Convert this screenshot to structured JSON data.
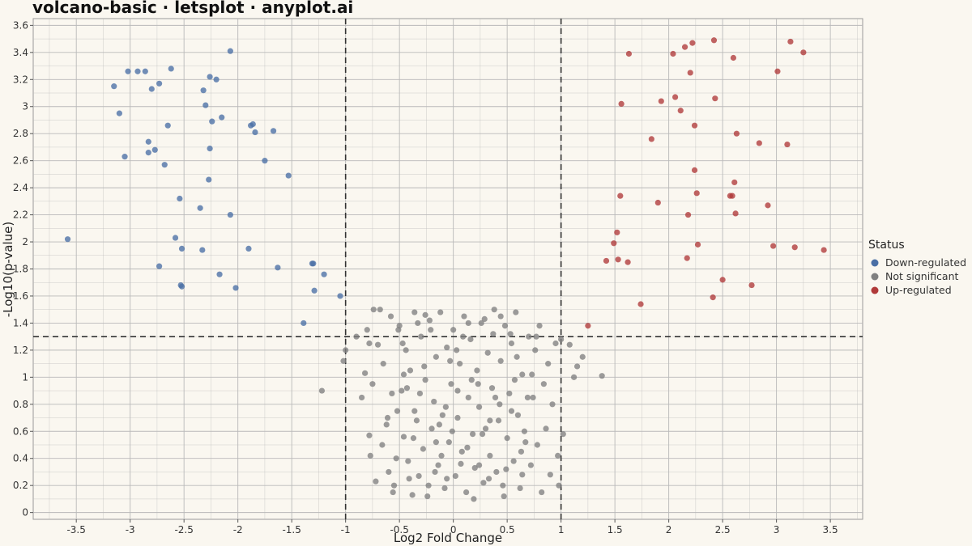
{
  "title": "volcano-basic · letsplot · anyplot.ai",
  "colors": {
    "background": "#faf7f0",
    "down": "#4a6fa5",
    "ns": "#808080",
    "up": "#b03a3a",
    "grid": "#b9b9b9",
    "threshold": "#333333"
  },
  "chart_data": {
    "type": "scatter",
    "title": "volcano-basic · letsplot · anyplot.ai",
    "xlabel": "Log2 Fold Change",
    "ylabel": "-Log10(p-value)",
    "xlim": [
      -3.9,
      3.8
    ],
    "ylim": [
      -0.05,
      3.65
    ],
    "x_ticks": [
      -3.5,
      -3,
      -2.5,
      -2,
      -1.5,
      -1,
      -0.5,
      0,
      0.5,
      1,
      1.5,
      2,
      2.5,
      3,
      3.5
    ],
    "x_tick_labels": [
      "-3.5",
      "-3",
      "-2.5",
      "-2",
      "-1.5",
      "-1",
      "-0.5",
      "0",
      "0.5",
      "1",
      "1.5",
      "2",
      "2.5",
      "3",
      "3.5"
    ],
    "y_ticks": [
      0,
      0.2,
      0.4,
      0.6,
      0.8,
      1,
      1.2,
      1.4,
      1.6,
      1.8,
      2,
      2.2,
      2.4,
      2.6,
      2.8,
      3,
      3.2,
      3.4,
      3.6
    ],
    "y_tick_labels": [
      "0",
      "0.2",
      "0.4",
      "0.6",
      "0.8",
      "1",
      "1.2",
      "1.4",
      "1.6",
      "1.8",
      "2",
      "2.2",
      "2.4",
      "2.6",
      "2.8",
      "3",
      "3.2",
      "3.4",
      "3.6"
    ],
    "grid": true,
    "thresholds": {
      "x": [
        -1,
        1
      ],
      "y": 1.3
    },
    "legend": {
      "title": "Status",
      "position": "right",
      "entries": [
        {
          "label": "Down-regulated",
          "color": "#4a6fa5"
        },
        {
          "label": "Not significant",
          "color": "#808080"
        },
        {
          "label": "Up-regulated",
          "color": "#b03a3a"
        }
      ]
    },
    "series": [
      {
        "name": "Down-regulated",
        "color": "#4a6fa5",
        "points": [
          [
            -3.58,
            2.02
          ],
          [
            -3.15,
            3.15
          ],
          [
            -3.1,
            2.95
          ],
          [
            -3.05,
            2.63
          ],
          [
            -3.02,
            3.26
          ],
          [
            -2.93,
            3.26
          ],
          [
            -2.86,
            3.26
          ],
          [
            -2.83,
            2.74
          ],
          [
            -2.83,
            2.66
          ],
          [
            -2.8,
            3.13
          ],
          [
            -2.77,
            2.68
          ],
          [
            -2.73,
            3.17
          ],
          [
            -2.73,
            1.82
          ],
          [
            -2.68,
            2.57
          ],
          [
            -2.65,
            2.86
          ],
          [
            -2.62,
            3.28
          ],
          [
            -2.58,
            2.03
          ],
          [
            -2.54,
            2.32
          ],
          [
            -2.53,
            1.68
          ],
          [
            -2.52,
            1.95
          ],
          [
            -2.52,
            1.67
          ],
          [
            -2.35,
            2.25
          ],
          [
            -2.33,
            1.94
          ],
          [
            -2.32,
            3.12
          ],
          [
            -2.3,
            3.01
          ],
          [
            -2.27,
            2.46
          ],
          [
            -2.26,
            2.69
          ],
          [
            -2.26,
            3.22
          ],
          [
            -2.24,
            2.89
          ],
          [
            -2.2,
            3.2
          ],
          [
            -2.17,
            1.76
          ],
          [
            -2.15,
            2.92
          ],
          [
            -2.07,
            2.2
          ],
          [
            -2.07,
            3.41
          ],
          [
            -2.02,
            1.66
          ],
          [
            -1.9,
            1.95
          ],
          [
            -1.88,
            2.86
          ],
          [
            -1.86,
            2.87
          ],
          [
            -1.84,
            2.81
          ],
          [
            -1.75,
            2.6
          ],
          [
            -1.67,
            2.82
          ],
          [
            -1.63,
            1.81
          ],
          [
            -1.53,
            2.49
          ],
          [
            -1.39,
            1.4
          ],
          [
            -1.31,
            1.84
          ],
          [
            -1.3,
            1.84
          ],
          [
            -1.29,
            1.64
          ],
          [
            -1.2,
            1.76
          ],
          [
            -1.05,
            1.6
          ]
        ]
      },
      {
        "name": "Not significant",
        "color": "#808080",
        "points": [
          [
            -1.22,
            0.9
          ],
          [
            -1.02,
            1.12
          ],
          [
            -1.0,
            1.2
          ],
          [
            -0.9,
            1.3
          ],
          [
            -0.85,
            0.85
          ],
          [
            -0.8,
            1.35
          ],
          [
            -0.82,
            1.03
          ],
          [
            -0.78,
            0.57
          ],
          [
            -0.77,
            0.42
          ],
          [
            -0.74,
            1.5
          ],
          [
            -0.68,
            1.5
          ],
          [
            -0.7,
            1.24
          ],
          [
            -0.72,
            0.23
          ],
          [
            -0.75,
            0.95
          ],
          [
            -0.78,
            1.25
          ],
          [
            -0.65,
            1.1
          ],
          [
            -0.62,
            0.65
          ],
          [
            -0.6,
            0.3
          ],
          [
            -0.58,
            1.45
          ],
          [
            -0.55,
            0.2
          ],
          [
            -0.52,
            0.75
          ],
          [
            -0.5,
            1.38
          ],
          [
            -0.48,
            0.9
          ],
          [
            -0.46,
            0.56
          ],
          [
            -0.44,
            1.2
          ],
          [
            -0.42,
            0.38
          ],
          [
            -0.4,
            1.05
          ],
          [
            -0.38,
            0.13
          ],
          [
            -0.36,
            1.48
          ],
          [
            -0.34,
            0.68
          ],
          [
            -0.32,
            0.27
          ],
          [
            -0.3,
            1.3
          ],
          [
            -0.28,
            0.47
          ],
          [
            -0.26,
            0.98
          ],
          [
            -0.24,
            0.12
          ],
          [
            -0.22,
            1.42
          ],
          [
            -0.2,
            0.62
          ],
          [
            -0.18,
            0.82
          ],
          [
            -0.16,
            1.15
          ],
          [
            -0.14,
            0.35
          ],
          [
            -0.12,
            1.48
          ],
          [
            -0.1,
            0.72
          ],
          [
            -0.08,
            0.18
          ],
          [
            -0.06,
            1.22
          ],
          [
            -0.04,
            0.52
          ],
          [
            -0.02,
            0.95
          ],
          [
            0.0,
            1.35
          ],
          [
            0.02,
            0.27
          ],
          [
            0.04,
            0.7
          ],
          [
            0.06,
            1.1
          ],
          [
            0.08,
            0.45
          ],
          [
            0.1,
            1.45
          ],
          [
            0.12,
            0.15
          ],
          [
            0.14,
            0.85
          ],
          [
            0.16,
            1.28
          ],
          [
            0.18,
            0.58
          ],
          [
            0.2,
            0.33
          ],
          [
            0.22,
            1.05
          ],
          [
            0.24,
            0.78
          ],
          [
            0.26,
            1.4
          ],
          [
            0.28,
            0.22
          ],
          [
            0.3,
            0.62
          ],
          [
            0.32,
            1.18
          ],
          [
            0.34,
            0.42
          ],
          [
            0.36,
            0.92
          ],
          [
            0.38,
            1.5
          ],
          [
            0.4,
            0.3
          ],
          [
            0.42,
            0.68
          ],
          [
            0.44,
            1.12
          ],
          [
            0.46,
            0.2
          ],
          [
            0.48,
            1.38
          ],
          [
            0.5,
            0.55
          ],
          [
            0.52,
            0.88
          ],
          [
            0.54,
            1.25
          ],
          [
            0.56,
            0.38
          ],
          [
            0.58,
            1.48
          ],
          [
            0.6,
            0.72
          ],
          [
            0.62,
            0.18
          ],
          [
            0.64,
            1.02
          ],
          [
            0.66,
            0.6
          ],
          [
            0.7,
            1.3
          ],
          [
            0.72,
            0.35
          ],
          [
            0.74,
            0.85
          ],
          [
            0.76,
            1.2
          ],
          [
            0.78,
            0.5
          ],
          [
            0.8,
            1.38
          ],
          [
            0.82,
            0.15
          ],
          [
            0.84,
            0.95
          ],
          [
            0.86,
            0.62
          ],
          [
            0.88,
            1.1
          ],
          [
            0.9,
            0.28
          ],
          [
            0.92,
            0.8
          ],
          [
            0.95,
            1.25
          ],
          [
            0.97,
            0.42
          ],
          [
            0.98,
            0.2
          ],
          [
            1.0,
            1.28
          ],
          [
            1.02,
            0.58
          ],
          [
            -0.57,
            0.88
          ],
          [
            -0.47,
            1.25
          ],
          [
            -0.37,
            0.55
          ],
          [
            -0.27,
            1.08
          ],
          [
            -0.17,
            0.3
          ],
          [
            -0.07,
            0.78
          ],
          [
            0.03,
            1.2
          ],
          [
            0.13,
            0.48
          ],
          [
            0.23,
            0.95
          ],
          [
            0.33,
            0.25
          ],
          [
            0.43,
            0.8
          ],
          [
            0.53,
            1.32
          ],
          [
            0.63,
            0.45
          ],
          [
            0.73,
            1.02
          ],
          [
            -0.53,
            0.4
          ],
          [
            -0.43,
            0.92
          ],
          [
            -0.33,
            1.4
          ],
          [
            -0.23,
            0.2
          ],
          [
            -0.13,
            0.65
          ],
          [
            -0.03,
            1.12
          ],
          [
            0.07,
            0.36
          ],
          [
            0.17,
            0.98
          ],
          [
            0.27,
            0.58
          ],
          [
            0.37,
            1.32
          ],
          [
            0.47,
            0.12
          ],
          [
            0.57,
            0.98
          ],
          [
            0.67,
            0.52
          ],
          [
            0.77,
            1.3
          ],
          [
            -0.61,
            0.7
          ],
          [
            -0.51,
            1.35
          ],
          [
            -0.41,
            0.25
          ],
          [
            -0.31,
            0.88
          ],
          [
            -0.21,
            1.35
          ],
          [
            -0.11,
            0.42
          ],
          [
            -0.01,
            0.6
          ],
          [
            0.09,
            1.3
          ],
          [
            0.19,
            0.1
          ],
          [
            0.29,
            1.43
          ],
          [
            0.39,
            0.85
          ],
          [
            0.49,
            0.32
          ],
          [
            0.59,
            1.15
          ],
          [
            0.69,
            0.85
          ],
          [
            -0.66,
            0.5
          ],
          [
            -0.56,
            0.15
          ],
          [
            -0.46,
            1.02
          ],
          [
            -0.36,
            0.75
          ],
          [
            -0.26,
            1.46
          ],
          [
            -0.16,
            0.52
          ],
          [
            -0.06,
            0.25
          ],
          [
            0.04,
            0.9
          ],
          [
            0.14,
            1.4
          ],
          [
            0.24,
            0.35
          ],
          [
            0.34,
            0.68
          ],
          [
            0.44,
            1.45
          ],
          [
            0.54,
            0.75
          ],
          [
            0.64,
            0.28
          ],
          [
            1.08,
            1.24
          ],
          [
            1.15,
            1.08
          ],
          [
            1.2,
            1.15
          ],
          [
            1.38,
            1.01
          ],
          [
            1.12,
            1.0
          ]
        ]
      },
      {
        "name": "Up-regulated",
        "color": "#b03a3a",
        "points": [
          [
            1.25,
            1.38
          ],
          [
            1.42,
            1.86
          ],
          [
            1.49,
            1.99
          ],
          [
            1.52,
            2.07
          ],
          [
            1.53,
            1.87
          ],
          [
            1.55,
            2.34
          ],
          [
            1.56,
            3.02
          ],
          [
            1.62,
            1.85
          ],
          [
            1.63,
            3.39
          ],
          [
            1.74,
            1.54
          ],
          [
            1.84,
            2.76
          ],
          [
            1.9,
            2.29
          ],
          [
            1.93,
            3.04
          ],
          [
            2.04,
            3.39
          ],
          [
            2.06,
            3.07
          ],
          [
            2.11,
            2.97
          ],
          [
            2.15,
            3.44
          ],
          [
            2.17,
            1.88
          ],
          [
            2.18,
            2.2
          ],
          [
            2.2,
            3.25
          ],
          [
            2.22,
            3.47
          ],
          [
            2.24,
            2.86
          ],
          [
            2.24,
            2.53
          ],
          [
            2.26,
            2.36
          ],
          [
            2.27,
            1.98
          ],
          [
            2.41,
            1.59
          ],
          [
            2.42,
            3.49
          ],
          [
            2.43,
            3.06
          ],
          [
            2.5,
            1.72
          ],
          [
            2.57,
            2.34
          ],
          [
            2.59,
            2.34
          ],
          [
            2.6,
            3.36
          ],
          [
            2.61,
            2.44
          ],
          [
            2.62,
            2.21
          ],
          [
            2.63,
            2.8
          ],
          [
            2.77,
            1.68
          ],
          [
            2.84,
            2.73
          ],
          [
            2.92,
            2.27
          ],
          [
            2.97,
            1.97
          ],
          [
            3.01,
            3.26
          ],
          [
            3.1,
            2.72
          ],
          [
            3.13,
            3.48
          ],
          [
            3.17,
            1.96
          ],
          [
            3.25,
            3.4
          ],
          [
            3.44,
            1.94
          ]
        ]
      }
    ]
  }
}
